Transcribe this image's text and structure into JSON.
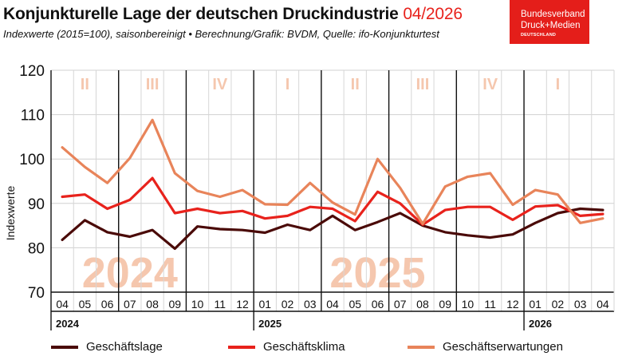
{
  "header": {
    "title": "Konjunkturelle Lage der deutschen Druckindustrie",
    "title_date": "04/2026",
    "subtitle": "Indexwerte (2015=100), saisonbereinigt • Berechnung/Grafik: BVDM, Quelle: ifo-Konjunkturtest"
  },
  "logo": {
    "line1": "Bundesverband",
    "line2": "Druck+Medien",
    "line3": "DEUTSCHLAND"
  },
  "colors": {
    "accent": "#e8221c",
    "lage": "#4a0a08",
    "klima": "#e8221c",
    "erwartungen": "#e8845a",
    "watermark": "#f5c7ae"
  },
  "chart_data": {
    "type": "line",
    "ylabel": "Indexwerte",
    "ylim": [
      70,
      120
    ],
    "yticks": [
      70,
      80,
      90,
      100,
      110,
      120
    ],
    "grid": true,
    "legend_position": "bottom",
    "categories": [
      "04",
      "05",
      "06",
      "07",
      "08",
      "09",
      "10",
      "11",
      "12",
      "01",
      "02",
      "03",
      "04",
      "05",
      "06",
      "07",
      "08",
      "09",
      "10",
      "11",
      "12",
      "01",
      "02",
      "03",
      "04"
    ],
    "years": [
      {
        "label": "2024",
        "start_index": 0
      },
      {
        "label": "2025",
        "start_index": 9
      },
      {
        "label": "2026",
        "start_index": 21
      }
    ],
    "watermark_years": [
      {
        "label": "2024",
        "center_index": 3
      },
      {
        "label": "2025",
        "center_index": 14
      }
    ],
    "quarters": [
      {
        "label": "II",
        "start_index": 0,
        "end_index": 2
      },
      {
        "label": "III",
        "start_index": 3,
        "end_index": 5
      },
      {
        "label": "IV",
        "start_index": 6,
        "end_index": 8
      },
      {
        "label": "I",
        "start_index": 9,
        "end_index": 11
      },
      {
        "label": "II",
        "start_index": 12,
        "end_index": 14
      },
      {
        "label": "III",
        "start_index": 15,
        "end_index": 17
      },
      {
        "label": "IV",
        "start_index": 18,
        "end_index": 20
      },
      {
        "label": "I",
        "start_index": 21,
        "end_index": 23
      }
    ],
    "series": [
      {
        "name": "Geschäftslage",
        "key": "lage",
        "values": [
          81.8,
          86.2,
          83.5,
          82.5,
          84.0,
          79.8,
          84.8,
          84.2,
          84.0,
          83.4,
          85.2,
          84.0,
          87.2,
          84.0,
          85.8,
          87.8,
          85.0,
          83.5,
          82.8,
          82.3,
          83.0,
          85.6,
          87.8,
          88.8,
          88.5
        ]
      },
      {
        "name": "Geschäftsklima",
        "key": "klima",
        "values": [
          91.5,
          92.0,
          88.8,
          90.8,
          95.7,
          87.8,
          88.8,
          87.8,
          88.3,
          86.6,
          87.2,
          89.2,
          88.8,
          86.0,
          92.6,
          90.0,
          85.2,
          88.5,
          89.2,
          89.2,
          86.3,
          89.3,
          89.6,
          87.2,
          87.6
        ]
      },
      {
        "name": "Geschäftserwartungen",
        "key": "erwartungen",
        "values": [
          102.6,
          98.2,
          94.6,
          100.2,
          108.8,
          96.8,
          92.8,
          91.5,
          93.0,
          89.8,
          89.7,
          94.6,
          90.2,
          87.5,
          100.0,
          93.5,
          85.4,
          93.8,
          96.0,
          96.8,
          89.7,
          93.0,
          92.0,
          85.6,
          86.6
        ]
      }
    ]
  }
}
